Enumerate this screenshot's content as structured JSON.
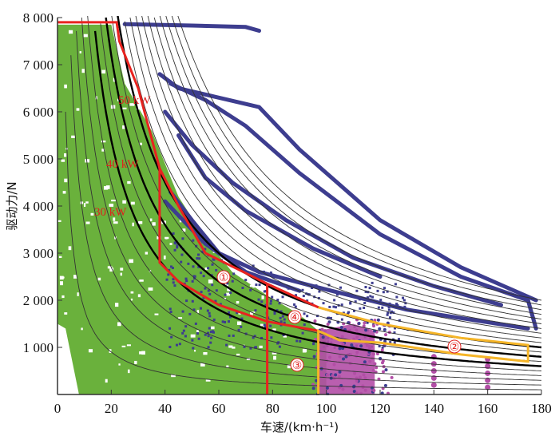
{
  "chart_data": {
    "type": "scatter",
    "title": "",
    "xlabel": "车速/(km·h⁻¹)",
    "ylabel": "驱动力/N",
    "xlim": [
      0,
      180
    ],
    "ylim": [
      0,
      8000
    ],
    "x_ticks": [
      0,
      20,
      40,
      60,
      80,
      100,
      120,
      140,
      160,
      180
    ],
    "x_tick_labels": [
      "0",
      "20",
      "40",
      "60",
      "80",
      "100",
      "120",
      "140",
      "160",
      "180"
    ],
    "y_ticks": [
      1000,
      2000,
      3000,
      4000,
      5000,
      6000,
      7000,
      8000
    ],
    "y_tick_labels": [
      "1 000",
      "2 000",
      "3 000",
      "4 000",
      "5 000",
      "6 000",
      "7 000",
      "8 000"
    ],
    "origin_label": "0",
    "grid": false,
    "colors": {
      "green_points": "#6ab13c",
      "blue_points": "#3d3d8f",
      "magenta_points": "#b24ea6",
      "red_boundary": "#e8231f",
      "orange_boundary": "#f5b528",
      "iso_power_thin": "#333333",
      "iso_power_thick": "#000000"
    },
    "iso_power_curves_kW": [
      5,
      10,
      15,
      20,
      25,
      30,
      35,
      40,
      45,
      50,
      55,
      60,
      65,
      70,
      75,
      80,
      85,
      90,
      95,
      100
    ],
    "iso_power_thick_kW": [
      30,
      40,
      50
    ],
    "power_labels": [
      "50 kW",
      "40 kW",
      "30 kW"
    ],
    "region_markers": [
      "①",
      "②",
      "③",
      "④"
    ],
    "series": [
      {
        "name": "green",
        "description_points": [
          [
            5,
            7800
          ],
          [
            10,
            7000
          ],
          [
            15,
            6000
          ],
          [
            20,
            5000
          ],
          [
            30,
            4000
          ],
          [
            40,
            3000
          ],
          [
            60,
            2000
          ],
          [
            80,
            1000
          ],
          [
            95,
            500
          ]
        ]
      },
      {
        "name": "blue",
        "description_points": [
          [
            25,
            7850
          ],
          [
            70,
            7800
          ],
          [
            40,
            6700
          ],
          [
            60,
            6100
          ],
          [
            80,
            5000
          ],
          [
            100,
            4000
          ],
          [
            140,
            3000
          ],
          [
            175,
            2000
          ],
          [
            120,
            1500
          ]
        ]
      },
      {
        "name": "magenta",
        "description_points": [
          [
            100,
            1200
          ],
          [
            110,
            800
          ],
          [
            120,
            400
          ],
          [
            140,
            500
          ],
          [
            160,
            300
          ]
        ]
      }
    ],
    "red_boundary_outer": [
      [
        0,
        7900
      ],
      [
        22,
        7900
      ],
      [
        23,
        7500
      ],
      [
        30,
        6500
      ],
      [
        38,
        4800
      ],
      [
        45,
        4000
      ],
      [
        55,
        3000
      ],
      [
        78,
        2350
      ],
      [
        97,
        1850
      ]
    ],
    "red_boundary_inner": [
      [
        38,
        4800
      ],
      [
        38,
        2800
      ],
      [
        45,
        2400
      ],
      [
        60,
        1900
      ],
      [
        78,
        1550
      ],
      [
        97,
        1350
      ]
    ],
    "red_vertical_x": 78,
    "orange_boundary": [
      [
        97,
        1850
      ],
      [
        120,
        1500
      ],
      [
        150,
        1200
      ],
      [
        175,
        1050
      ],
      [
        175,
        700
      ],
      [
        150,
        850
      ],
      [
        120,
        1100
      ],
      [
        105,
        1150
      ],
      [
        97,
        1350
      ],
      [
        97,
        0
      ]
    ]
  }
}
